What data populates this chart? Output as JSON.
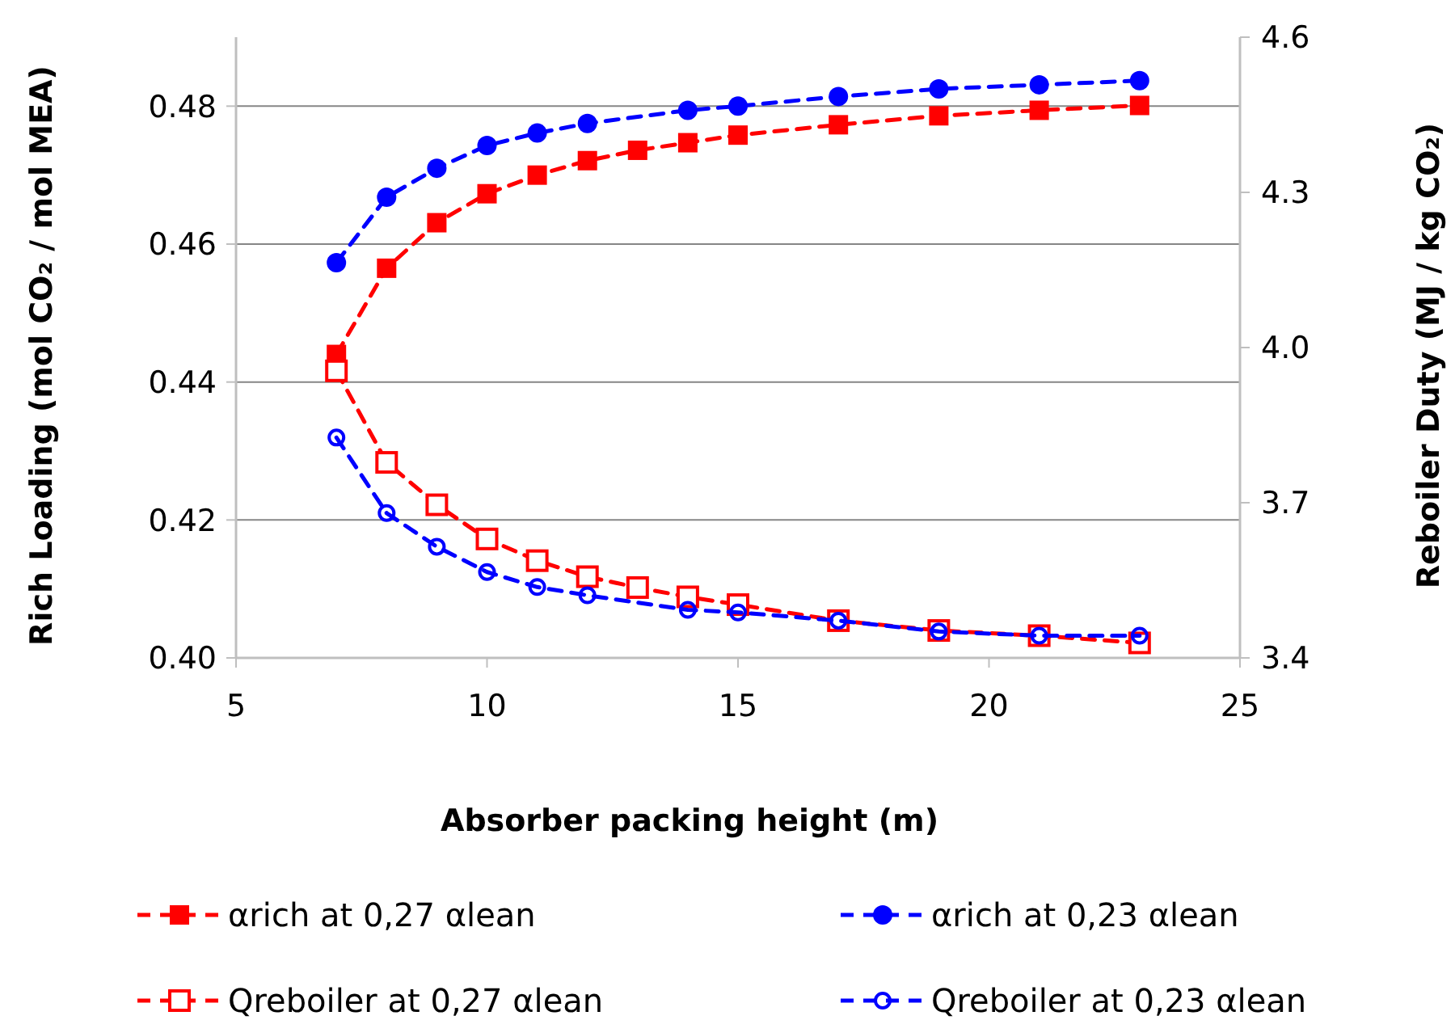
{
  "chart_data": {
    "type": "line",
    "xlabel": "Absorber packing height (m)",
    "ylabel": "Rich Loading (mol CO₂ / mol MEA)",
    "y2label": "Reboiler Duty (MJ / kg CO₂)",
    "xlim": [
      5,
      25
    ],
    "xticks": [
      5,
      10,
      15,
      20,
      25
    ],
    "ylim": [
      0.4,
      0.49
    ],
    "yticks": [
      {
        "value": 0.4,
        "label": "0.40"
      },
      {
        "value": 0.42,
        "label": "0.42"
      },
      {
        "value": 0.44,
        "label": "0.44"
      },
      {
        "value": 0.46,
        "label": "0.46"
      },
      {
        "value": 0.48,
        "label": "0.48"
      }
    ],
    "y2lim": [
      3.4,
      4.6
    ],
    "y2ticks": [
      {
        "value": 3.4,
        "label": "3.4"
      },
      {
        "value": 3.7,
        "label": "3.7"
      },
      {
        "value": 4.0,
        "label": "4.0"
      },
      {
        "value": 4.3,
        "label": "4.3"
      },
      {
        "value": 4.6,
        "label": "4.6"
      }
    ],
    "grid": "y",
    "legend": "bottom",
    "line_style": "dashed",
    "series": [
      {
        "name": "αrich at 0,27 αlean",
        "color": "#ff0000",
        "marker": "square",
        "x": [
          7,
          8,
          9,
          10,
          11,
          12,
          13,
          14,
          15,
          17,
          19,
          21,
          23
        ],
        "values": [
          0.444,
          0.4565,
          0.4631,
          0.4673,
          0.47,
          0.4721,
          0.4736,
          0.4747,
          0.4758,
          0.4773,
          0.4786,
          0.4794,
          0.4801
        ]
      },
      {
        "name": "αrich at 0,23 αlean",
        "color": "#0000ff",
        "marker": "circle",
        "x": [
          7,
          8,
          9,
          10,
          11,
          12,
          14,
          15,
          17,
          19,
          21,
          23
        ],
        "values": [
          0.4573,
          0.4668,
          0.471,
          0.4743,
          0.4761,
          0.4775,
          0.4794,
          0.48,
          0.4814,
          0.4825,
          0.4831,
          0.4837
        ]
      },
      {
        "name": "Qreboiler at 0,27 αlean",
        "color": "#ff0000",
        "marker": "square",
        "axis": "y2",
        "x": [
          7,
          8,
          9,
          10,
          11,
          12,
          13,
          14,
          15,
          17,
          19,
          21,
          23
        ],
        "values": [
          3.955,
          3.778,
          3.696,
          3.63,
          3.588,
          3.557,
          3.536,
          3.518,
          3.503,
          3.472,
          3.453,
          3.443,
          3.429
        ]
      },
      {
        "name": "Qreboiler at 0,23 αlean",
        "color": "#0000ff",
        "marker": "circle",
        "axis": "y2",
        "x": [
          7,
          8,
          9,
          10,
          11,
          12,
          14,
          15,
          17,
          19,
          21,
          23
        ],
        "values": [
          3.826,
          3.68,
          3.615,
          3.566,
          3.537,
          3.521,
          3.493,
          3.488,
          3.472,
          3.451,
          3.443,
          3.443
        ]
      }
    ]
  }
}
